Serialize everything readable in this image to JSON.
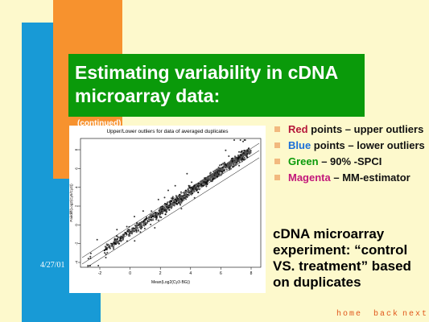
{
  "slide": {
    "title": "Estimating variability in cDNA microarray data:",
    "continued": "(continued)",
    "date": "4/27/01"
  },
  "plot": {
    "title": "Upper/Lower outliers for data of averaged duplicates",
    "xlabel": "Mean(Log2(Cy3·BG))",
    "ylabel": "Pairdiff(Log2(Cy5/Cy3))",
    "x_ticks": [
      "-2",
      "0",
      "2",
      "4",
      "6",
      "8"
    ],
    "y_ticks": [
      "-4",
      "-2",
      "0",
      "2",
      "4",
      "6",
      "8"
    ]
  },
  "bullets": [
    {
      "highlight": "Red",
      "color": "#b5173a",
      "rest": " points – upper outliers"
    },
    {
      "highlight": "Blue",
      "color": "#1a6ed8",
      "rest": " points – lower outliers"
    },
    {
      "highlight": "Green",
      "color": "#0a9a0a",
      "rest": " – 90% -SPCI"
    },
    {
      "highlight": "Magenta",
      "color": "#c2187a",
      "rest": " – MM-estimator"
    }
  ],
  "summary": "cDNA microarray experiment: “control VS. treatment” based on duplicates",
  "nav": {
    "home": "home",
    "back": "back",
    "next": "next"
  }
}
